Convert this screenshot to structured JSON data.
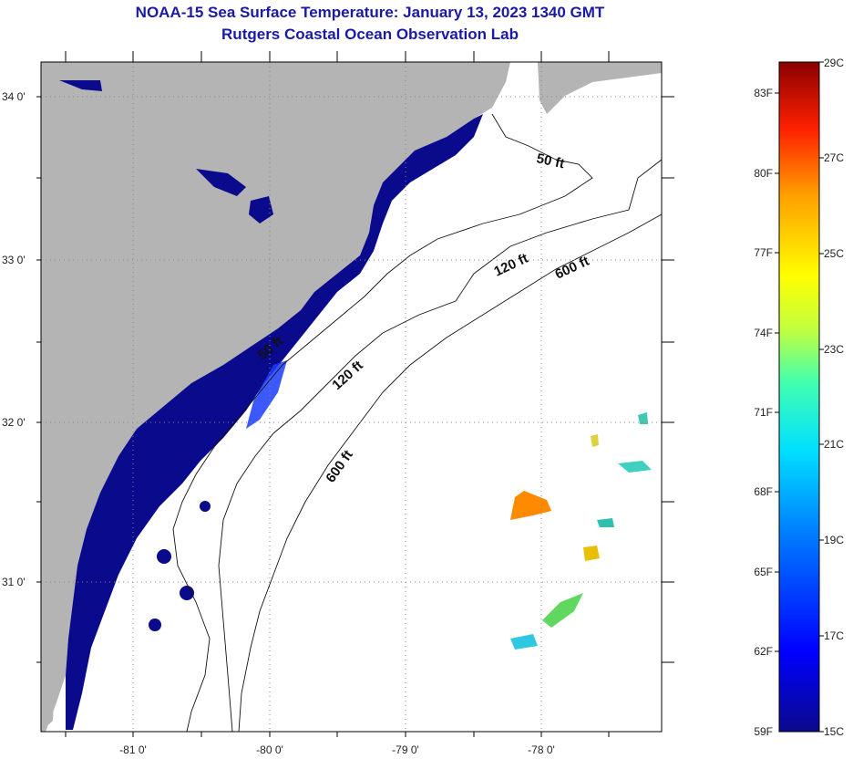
{
  "header": {
    "title": "NOAA-15 Sea Surface Temperature:  January 13, 2023 1340 GMT",
    "subtitle": "Rutgers Coastal Ocean Observation Lab"
  },
  "map": {
    "lon_labels": [
      "-81 0'",
      "-80 0'",
      "-79 0'",
      "-78 0'"
    ],
    "lat_labels": [
      "34 0'",
      "33 0'",
      "32 0'",
      "31 0'"
    ],
    "contours": [
      {
        "label": "50 ft",
        "id": "c50a"
      },
      {
        "label": "120 ft",
        "id": "c120a"
      },
      {
        "label": "600 ft",
        "id": "c600a"
      },
      {
        "label": "50 ft",
        "id": "c50b"
      },
      {
        "label": "120 ft",
        "id": "c120b"
      },
      {
        "label": "600 ft",
        "id": "c600b"
      }
    ],
    "colors": {
      "land": "#b4b4b4",
      "ocean": "#ffffff",
      "cold_water": "#0a0a8c"
    }
  },
  "colorbar": {
    "fahrenheit": [
      "83F",
      "80F",
      "77F",
      "74F",
      "71F",
      "68F",
      "65F",
      "62F",
      "59F"
    ],
    "celsius": [
      "29C",
      "27C",
      "25C",
      "23C",
      "21C",
      "19C",
      "17C",
      "15C"
    ],
    "range_c": [
      15,
      29
    ],
    "stops": [
      "#0a0a8c",
      "#0000ff",
      "#0080ff",
      "#00e0ff",
      "#40ffb0",
      "#c0ff40",
      "#ffff00",
      "#ffa000",
      "#ff2000",
      "#8b0000"
    ]
  }
}
